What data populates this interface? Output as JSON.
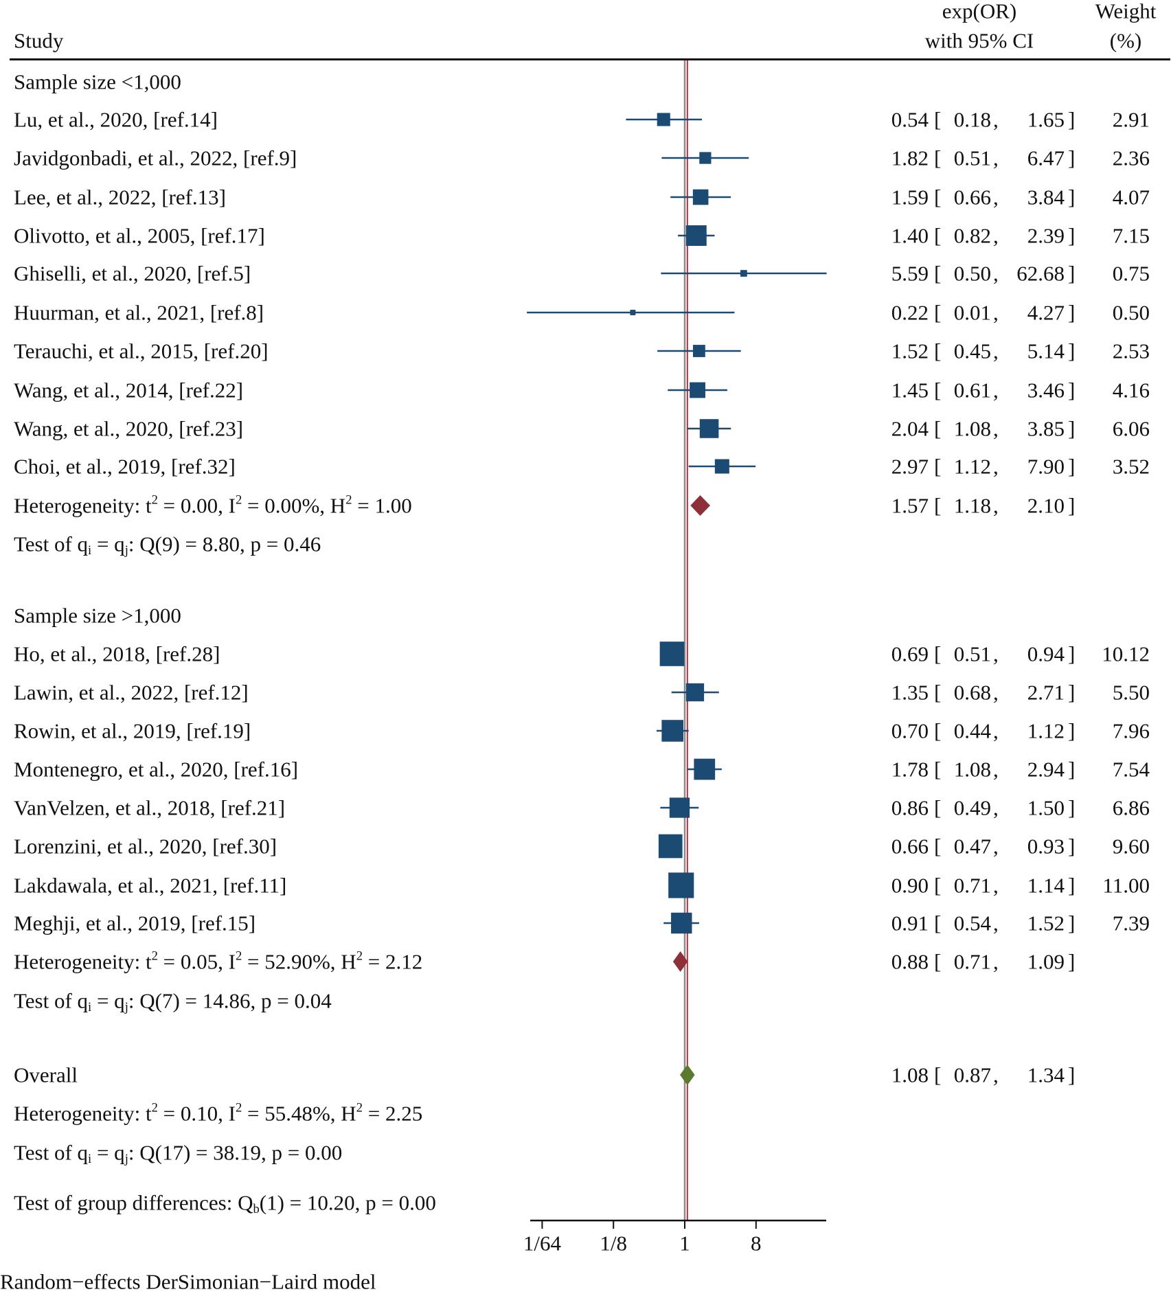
{
  "header": {
    "study": "Study",
    "effect_line1": "exp(OR)",
    "effect_line2": "with 95% CI",
    "weight_line1": "Weight",
    "weight_line2": "(%)"
  },
  "footer": "Random−effects DerSimonian−Laird model",
  "colors": {
    "marker": "#1b4a73",
    "subgroup_diamond": "#8e3038",
    "overall_diamond": "#5b7a2f",
    "null_line": "#8a8a8a",
    "overall_line": "#d0223a"
  },
  "chart_data": {
    "type": "forest",
    "x_scale": "log2",
    "x_ticks": [
      {
        "value": 0.015625,
        "label": "1/64"
      },
      {
        "value": 0.125,
        "label": "1/8"
      },
      {
        "value": 1,
        "label": "1"
      },
      {
        "value": 8,
        "label": "8"
      }
    ],
    "xlim": [
      0.011,
      62
    ],
    "null_value": 1,
    "groups": [
      {
        "label": "Sample size <1,000",
        "studies": [
          {
            "name": "Lu, et al., 2020, [ref.14]",
            "est": "0.54",
            "lo": "0.18",
            "hi": "1.65",
            "weight": "2.91"
          },
          {
            "name": "Javidgonbadi, et al., 2022, [ref.9]",
            "est": "1.82",
            "lo": "0.51",
            "hi": "6.47",
            "weight": "2.36"
          },
          {
            "name": "Lee, et al., 2022, [ref.13]",
            "est": "1.59",
            "lo": "0.66",
            "hi": "3.84",
            "weight": "4.07"
          },
          {
            "name": "Olivotto, et al., 2005, [ref.17]",
            "est": "1.40",
            "lo": "0.82",
            "hi": "2.39",
            "weight": "7.15"
          },
          {
            "name": "Ghiselli, et al., 2020, [ref.5]",
            "est": "5.59",
            "lo": "0.50",
            "hi": "62.68",
            "weight": "0.75"
          },
          {
            "name": "Huurman, et al., 2021, [ref.8]",
            "est": "0.22",
            "lo": "0.01",
            "hi": "4.27",
            "weight": "0.50"
          },
          {
            "name": "Terauchi, et al., 2015, [ref.20]",
            "est": "1.52",
            "lo": "0.45",
            "hi": "5.14",
            "weight": "2.53"
          },
          {
            "name": "Wang, et al., 2014, [ref.22]",
            "est": "1.45",
            "lo": "0.61",
            "hi": "3.46",
            "weight": "4.16"
          },
          {
            "name": "Wang, et al., 2020, [ref.23]",
            "est": "2.04",
            "lo": "1.08",
            "hi": "3.85",
            "weight": "6.06"
          },
          {
            "name": "Choi, et al., 2019, [ref.32]",
            "est": "2.97",
            "lo": "1.12",
            "hi": "7.90",
            "weight": "3.52"
          }
        ],
        "summary": {
          "est": "1.57",
          "lo": "1.18",
          "hi": "2.10"
        },
        "heterogeneity": {
          "label": "Heterogeneity:",
          "t2": "0.00",
          "I2": "0.00%",
          "H2": "1.00"
        },
        "test": {
          "label": "Test of",
          "Q": "Q(9) = 8.80, p = 0.46"
        }
      },
      {
        "label": "Sample size >1,000",
        "studies": [
          {
            "name": "Ho, et al., 2018, [ref.28]",
            "est": "0.69",
            "lo": "0.51",
            "hi": "0.94",
            "weight": "10.12"
          },
          {
            "name": "Lawin, et al., 2022, [ref.12]",
            "est": "1.35",
            "lo": "0.68",
            "hi": "2.71",
            "weight": "5.50"
          },
          {
            "name": "Rowin, et al., 2019, [ref.19]",
            "est": "0.70",
            "lo": "0.44",
            "hi": "1.12",
            "weight": "7.96"
          },
          {
            "name": "Montenegro, et al., 2020, [ref.16]",
            "est": "1.78",
            "lo": "1.08",
            "hi": "2.94",
            "weight": "7.54"
          },
          {
            "name": "VanVelzen, et al., 2018, [ref.21]",
            "est": "0.86",
            "lo": "0.49",
            "hi": "1.50",
            "weight": "6.86"
          },
          {
            "name": "Lorenzini, et al., 2020, [ref.30]",
            "est": "0.66",
            "lo": "0.47",
            "hi": "0.93",
            "weight": "9.60"
          },
          {
            "name": "Lakdawala, et al., 2021, [ref.11]",
            "est": "0.90",
            "lo": "0.71",
            "hi": "1.14",
            "weight": "11.00"
          },
          {
            "name": "Meghji, et al., 2019, [ref.15]",
            "est": "0.91",
            "lo": "0.54",
            "hi": "1.52",
            "weight": "7.39"
          }
        ],
        "summary": {
          "est": "0.88",
          "lo": "0.71",
          "hi": "1.09"
        },
        "heterogeneity": {
          "label": "Heterogeneity:",
          "t2": "0.05",
          "I2": "52.90%",
          "H2": "2.12"
        },
        "test": {
          "label": "Test of",
          "Q": "Q(7) = 14.86, p = 0.04"
        }
      }
    ],
    "overall": {
      "label": "Overall",
      "est": "1.08",
      "lo": "0.87",
      "hi": "1.34",
      "heterogeneity": {
        "label": "Heterogeneity:",
        "t2": "0.10",
        "I2": "55.48%",
        "H2": "2.25"
      },
      "test": {
        "label": "Test of",
        "Q": "Q(17) = 38.19, p = 0.00"
      }
    },
    "group_test": {
      "label": "Test of group differences:",
      "Q": "(1) = 10.20, p = 0.00"
    }
  }
}
